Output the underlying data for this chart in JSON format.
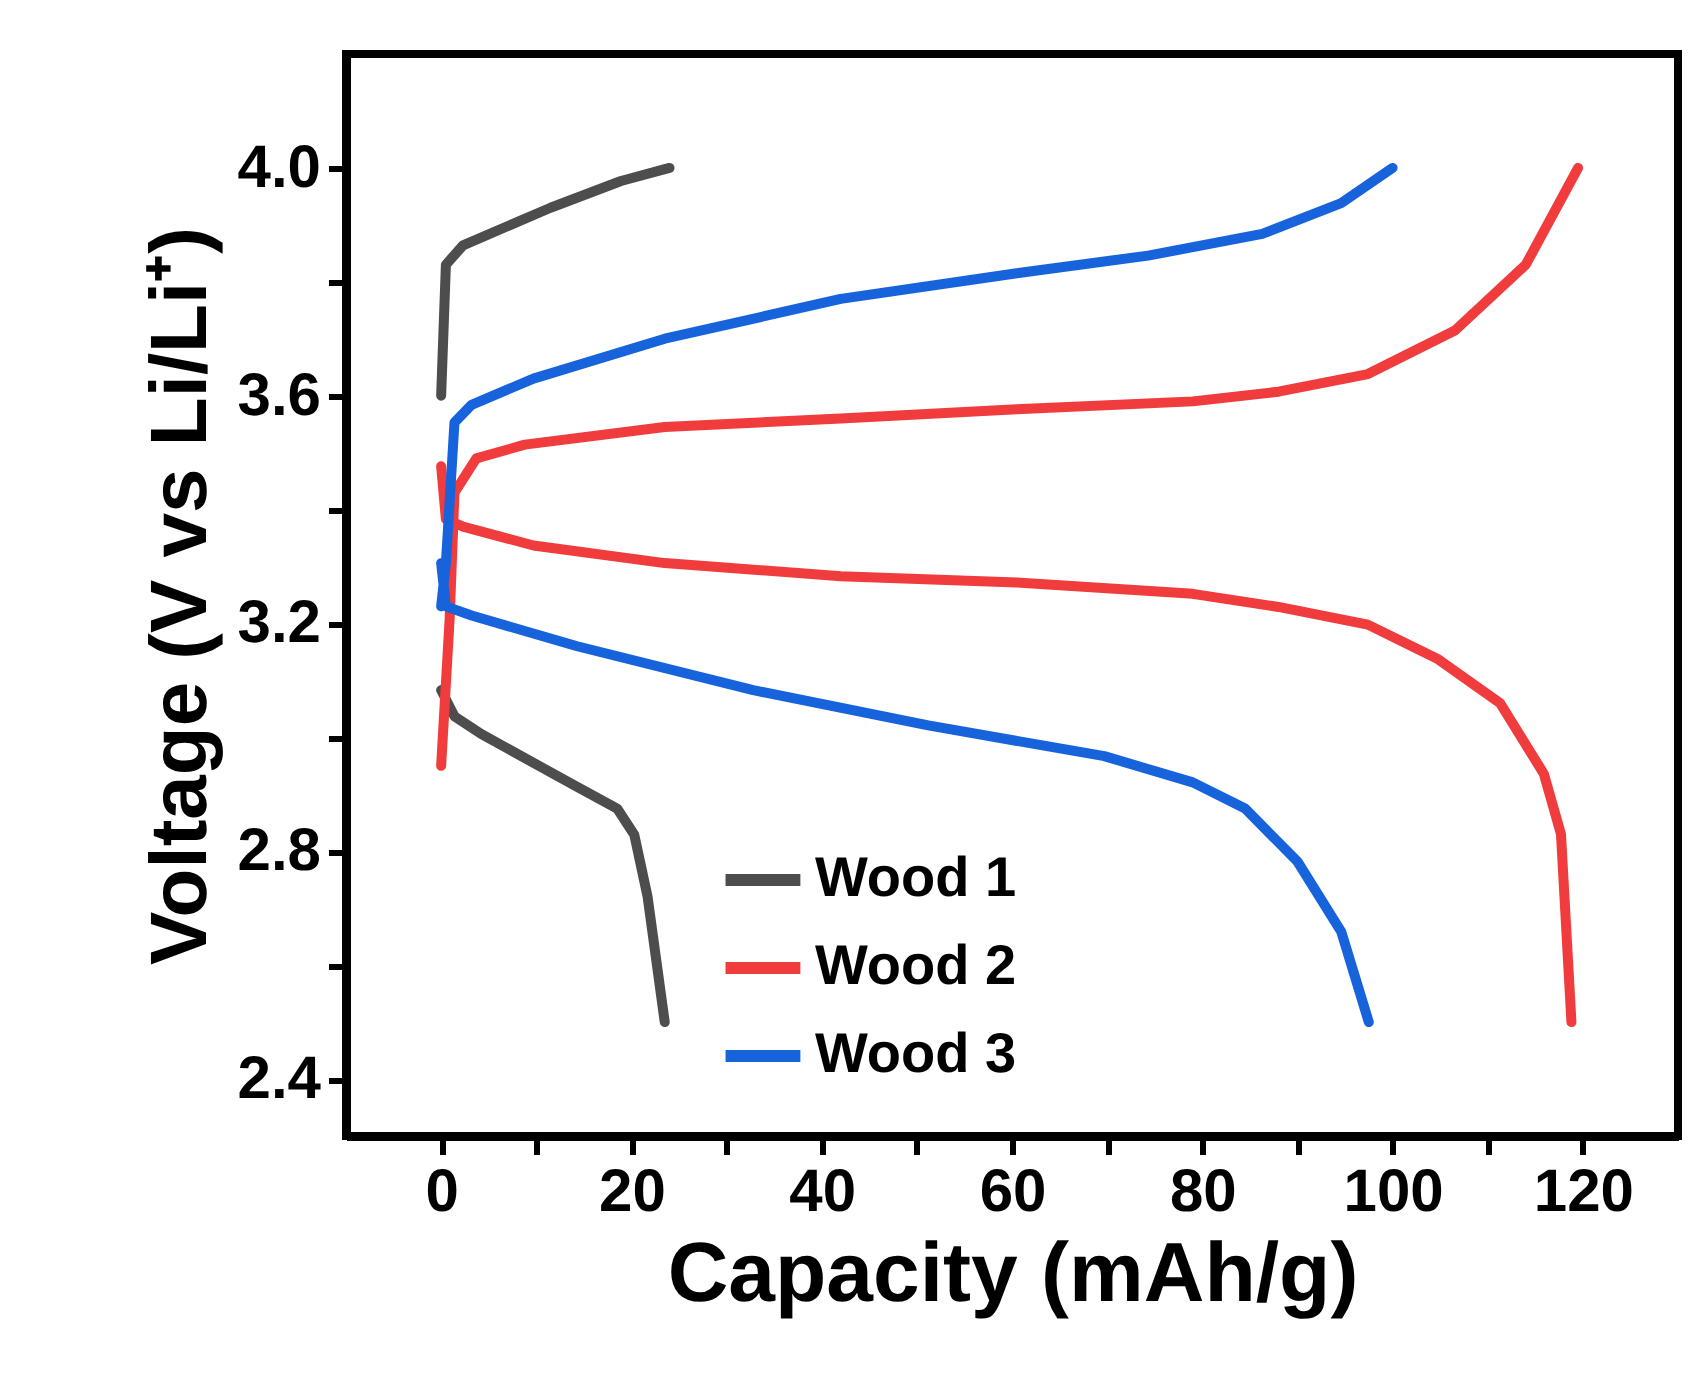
{
  "chart_data": {
    "type": "line",
    "xlabel": "Capacity (mAh/g)",
    "ylabel": "Voltage (V vs Li/Li⁺)",
    "xlim": [
      -10,
      130
    ],
    "ylim": [
      2.3,
      4.2
    ],
    "xticks": [
      0,
      {
        "value": 10,
        "label": null
      },
      20,
      {
        "value": 30,
        "label": null
      },
      40,
      {
        "value": 50,
        "label": null
      },
      60,
      {
        "value": 70,
        "label": null
      },
      80,
      {
        "value": 90,
        "label": null
      },
      100,
      {
        "value": 110,
        "label": null
      },
      120
    ],
    "yticks": [
      2.4,
      {
        "value": 2.6,
        "label": null
      },
      2.8,
      {
        "value": 3.0,
        "label": null
      },
      3.2,
      {
        "value": 3.4,
        "label": null
      },
      3.6,
      {
        "value": 3.8,
        "label": null
      },
      {
        "value": 4.0,
        "label": "4.0"
      }
    ],
    "grid": false,
    "legend": "bottom",
    "line_style": "solid",
    "marker": "none",
    "series": [
      {
        "name": "Wood 1",
        "color": "#4d4d4d",
        "x": [
          0,
          0.5,
          2.3,
          11.5,
          18.9,
          24,
          null,
          0,
          1.4,
          4.2,
          14.3,
          18.5,
          20.3,
          21.7,
          23.5
        ],
        "values": [
          3.6,
          3.83,
          3.864,
          3.93,
          3.977,
          4.0,
          null,
          3.083,
          3.037,
          3.006,
          2.913,
          2.875,
          2.829,
          2.72,
          2.5
        ]
      },
      {
        "name": "Wood 2",
        "color": "#f03c3c",
        "x": [
          0,
          0.9,
          1.4,
          3.7,
          8.8,
          23.5,
          42,
          60.5,
          79,
          88,
          97.4,
          106.6,
          114,
          119.5,
          null,
          0,
          0.5,
          2.3,
          9.7,
          23.5,
          42,
          60.5,
          79,
          88,
          97.4,
          104.8,
          111.3,
          115.9,
          117.7,
          118.8
        ],
        "values": [
          2.95,
          3.21,
          3.43,
          3.49,
          3.514,
          3.545,
          3.56,
          3.576,
          3.59,
          3.607,
          3.638,
          3.715,
          3.83,
          4.0,
          null,
          3.476,
          3.383,
          3.37,
          3.337,
          3.306,
          3.283,
          3.272,
          3.252,
          3.229,
          3.198,
          3.137,
          3.06,
          2.936,
          2.83,
          2.5
        ]
      },
      {
        "name": "Wood 3",
        "color": "#1763dc",
        "x": [
          0,
          0.5,
          1.4,
          3.2,
          9.7,
          23.5,
          42,
          60.5,
          74.3,
          86.3,
          94.6,
          100,
          null,
          0,
          0.5,
          3.2,
          14.3,
          32.8,
          51.2,
          69.7,
          79,
          84.5,
          90,
          94.6,
          97.5
        ],
        "values": [
          3.23,
          3.306,
          3.553,
          3.584,
          3.63,
          3.7,
          3.77,
          3.815,
          3.846,
          3.884,
          3.938,
          4.0,
          null,
          3.306,
          3.23,
          3.214,
          3.16,
          3.083,
          3.021,
          2.967,
          2.921,
          2.875,
          2.782,
          2.659,
          2.5
        ]
      }
    ]
  }
}
